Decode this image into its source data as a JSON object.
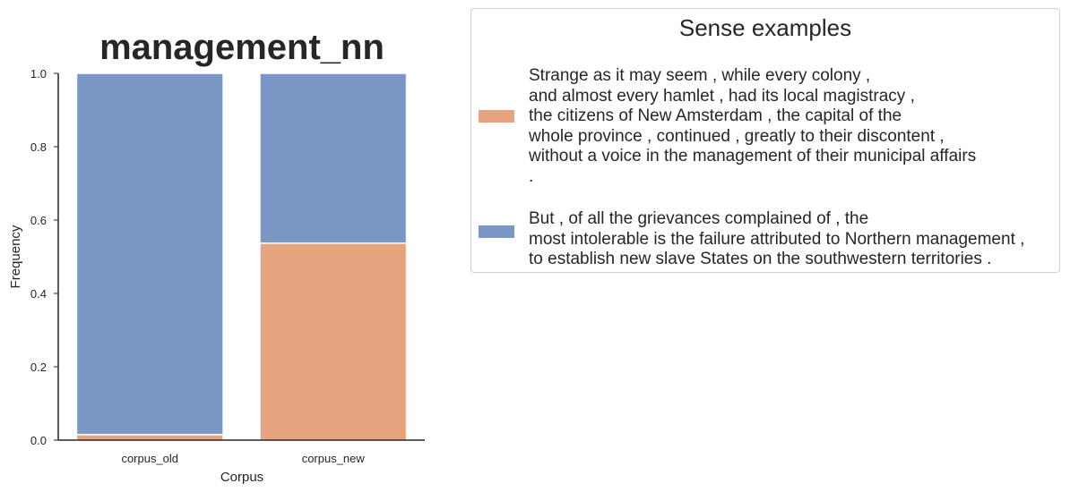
{
  "chart_data": {
    "type": "bar",
    "stacked": true,
    "title": "management_nn",
    "xlabel": "Corpus",
    "ylabel": "Frequency",
    "ylim": [
      0,
      1.0
    ],
    "yticks": [
      "0.0",
      "0.2",
      "0.4",
      "0.6",
      "0.8",
      "1.0"
    ],
    "categories": [
      "corpus_old",
      "corpus_new"
    ],
    "series": [
      {
        "color": "#e5a47d",
        "values": [
          0.015,
          0.537
        ]
      },
      {
        "color": "#7a97c5",
        "values": [
          0.985,
          0.463
        ]
      }
    ],
    "grid": false,
    "legend": {
      "title": "Sense examples",
      "placement": "right",
      "entries": [
        {
          "color": "#e5a47d",
          "text": "Strange as it may seem , while every colony ,\nand almost every hamlet , had its local magistracy ,\nthe citizens of New Amsterdam , the capital of the\nwhole province , continued , greatly to their discontent ,\nwithout a voice in the management of their municipal affairs\n."
        },
        {
          "color": "#7a97c5",
          "text": "But , of all the grievances complained of , the\nmost intolerable is the failure attributed to Northern management ,\nto establish new slave States on the southwestern territories ."
        }
      ]
    }
  }
}
